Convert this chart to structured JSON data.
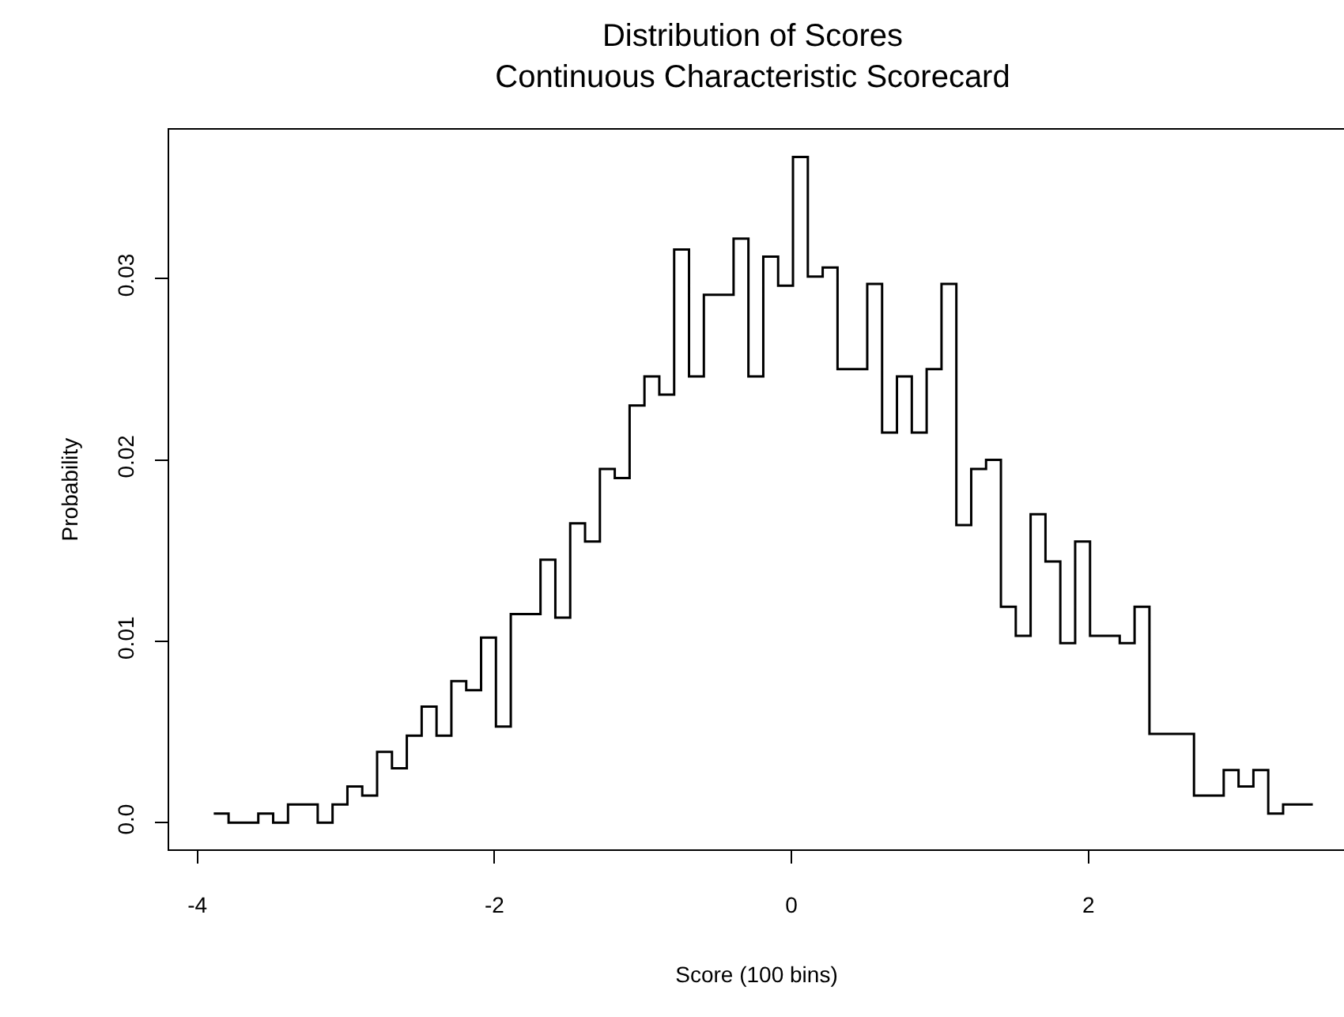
{
  "chart_data": {
    "type": "histogram",
    "title": "Distribution of Scores\nContinuous Characteristic Scorecard",
    "xlabel": "Score (100 bins)",
    "ylabel": "Probability",
    "bins": [
      -3.89,
      -3.79,
      -3.69,
      -3.59,
      -3.49,
      -3.39,
      -3.29,
      -3.19,
      -3.09,
      -2.99,
      -2.89,
      -2.79,
      -2.69,
      -2.59,
      -2.49,
      -2.39,
      -2.29,
      -2.19,
      -2.09,
      -1.99,
      -1.89,
      -1.79,
      -1.69,
      -1.59,
      -1.49,
      -1.39,
      -1.29,
      -1.19,
      -1.09,
      -0.99,
      -0.89,
      -0.79,
      -0.69,
      -0.59,
      -0.49,
      -0.39,
      -0.29,
      -0.19,
      -0.09,
      0.01,
      0.11,
      0.21,
      0.31,
      0.41,
      0.51,
      0.61,
      0.71,
      0.81,
      0.91,
      1.01,
      1.11,
      1.21,
      1.31,
      1.41,
      1.51,
      1.61,
      1.71,
      1.81,
      1.91,
      2.01,
      2.11,
      2.21,
      2.31,
      2.41,
      2.51,
      2.61,
      2.71,
      2.81,
      2.91,
      3.01,
      3.11,
      3.21,
      3.31,
      3.41,
      3.51
    ],
    "values": [
      0.0005,
      0,
      0,
      0.0005,
      0,
      0.001,
      0.001,
      0,
      0.001,
      0.002,
      0.0015,
      0.0039,
      0.003,
      0.0048,
      0.0064,
      0.0048,
      0.0078,
      0.0073,
      0.0102,
      0.0053,
      0.0115,
      0.0115,
      0.0145,
      0.0113,
      0.0165,
      0.0155,
      0.0195,
      0.019,
      0.023,
      0.0246,
      0.0236,
      0.0316,
      0.0246,
      0.0291,
      0.0291,
      0.0322,
      0.0246,
      0.0312,
      0.0296,
      0.0367,
      0.0301,
      0.0306,
      0.025,
      0.025,
      0.0297,
      0.0215,
      0.0246,
      0.0215,
      0.025,
      0.0297,
      0.0164,
      0.0195,
      0.02,
      0.0119,
      0.0103,
      0.017,
      0.0144,
      0.0099,
      0.0155,
      0.0103,
      0.0103,
      0.0099,
      0.0119,
      0.0049,
      0.0049,
      0.0049,
      0.0015,
      0.0015,
      0.0029,
      0.002,
      0.0029,
      0.0005,
      0.001,
      0.001
    ],
    "color": "#000000",
    "xlim": [
      -4.19,
      3.72
    ],
    "ylim": [
      -0.00147,
      0.0382
    ],
    "xticks": [
      -4,
      -2,
      0,
      2
    ],
    "yticks": [
      {
        "value": 0,
        "label": "0.0"
      },
      0.01,
      0.02,
      0.03
    ],
    "line_style": "solid"
  }
}
